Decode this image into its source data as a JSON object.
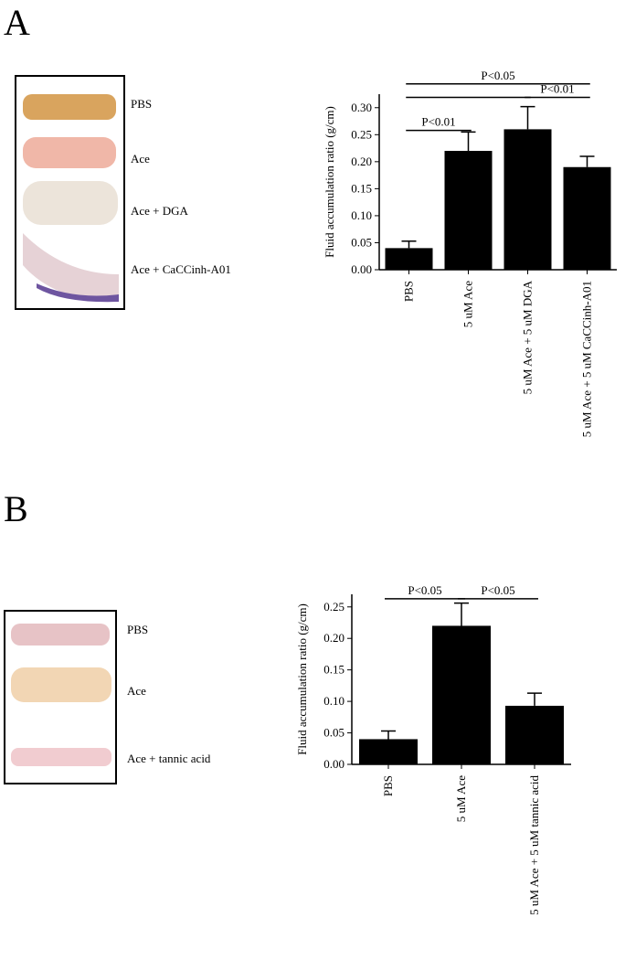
{
  "panels": [
    {
      "letter": "A",
      "photo_labels": [
        "PBS",
        "Ace",
        "Ace + DGA",
        "Ace + CaCCinh-A01"
      ]
    },
    {
      "letter": "B",
      "photo_labels": [
        "PBS",
        "Ace",
        "Ace + tannic acid"
      ]
    }
  ],
  "chart_data": [
    {
      "type": "bar",
      "y_label": "Fluid accumulation ratio (g/cm)",
      "categories": [
        "PBS",
        "5 uM Ace",
        "5 uM Ace + 5 uM DGA",
        "5 uM Ace + 5 uM CaCCinh-A01"
      ],
      "values": [
        0.04,
        0.22,
        0.26,
        0.19
      ],
      "errors": [
        0.013,
        0.035,
        0.042,
        0.02
      ],
      "color": "#000000",
      "ylim": [
        0,
        0.325
      ],
      "yticks": [
        {
          "value": 0,
          "label": "0.00"
        },
        {
          "value": 0.05,
          "label": "0.05"
        },
        {
          "value": 0.1,
          "label": "0.10"
        },
        {
          "value": 0.15,
          "label": "0.15"
        },
        {
          "value": 0.2,
          "label": "0.20"
        },
        {
          "value": 0.25,
          "label": "0.25"
        },
        {
          "value": 0.3,
          "label": "0.30"
        }
      ],
      "annotations": [
        {
          "text": "P<0.05",
          "from": 0,
          "to": 3,
          "y": 0.344
        },
        {
          "from": 0,
          "to": 2,
          "y": 0.319
        },
        {
          "text": "P<0.01",
          "from": 2,
          "to": 3,
          "y": 0.319
        },
        {
          "text": "P<0.01",
          "from": 0,
          "to": 1,
          "y": 0.258
        }
      ]
    },
    {
      "type": "bar",
      "y_label": "Fluid accumulation ratio (g/cm)",
      "categories": [
        "PBS",
        "5 uM Ace",
        "5 uM Ace + 5 uM tannic acid"
      ],
      "values": [
        0.04,
        0.22,
        0.093
      ],
      "errors": [
        0.013,
        0.036,
        0.02
      ],
      "color": "#000000",
      "ylim": [
        0,
        0.27
      ],
      "yticks": [
        {
          "value": 0,
          "label": "0.00"
        },
        {
          "value": 0.05,
          "label": "0.05"
        },
        {
          "value": 0.1,
          "label": "0.10"
        },
        {
          "value": 0.15,
          "label": "0.15"
        },
        {
          "value": 0.2,
          "label": "0.20"
        },
        {
          "value": 0.25,
          "label": "0.25"
        }
      ],
      "annotations": [
        {
          "text": "P<0.05",
          "from": 0,
          "to": 1,
          "y": 0.263
        },
        {
          "text": "P<0.05",
          "from": 1,
          "to": 2,
          "y": 0.263
        }
      ]
    }
  ]
}
